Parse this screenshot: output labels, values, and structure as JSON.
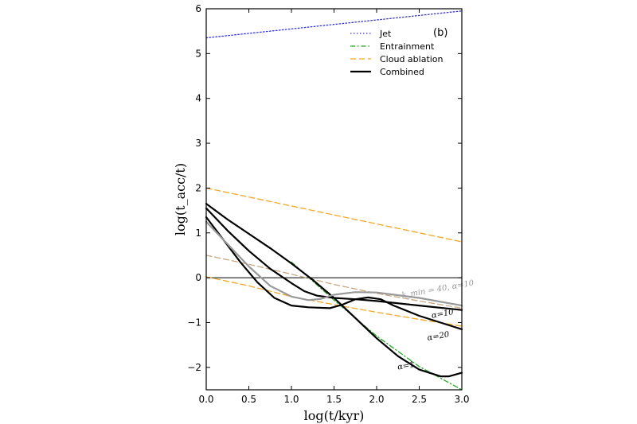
{
  "chart_data": {
    "type": "line",
    "xlabel": "log(t/kyr)",
    "ylabel": "log(t_acc/t)",
    "xlim": [
      0.0,
      3.0
    ],
    "ylim": [
      -2.5,
      6.0
    ],
    "xticks": [
      "0.0",
      "0.5",
      "1.0",
      "1.5",
      "2.0",
      "2.5",
      "3.0"
    ],
    "yticks": [
      "−2",
      "−1",
      "0",
      "1",
      "2",
      "3",
      "4",
      "5",
      "6"
    ],
    "panel_label": "(b)",
    "legend_position": "top-right",
    "legend": [
      {
        "label": "Jet",
        "style": "dotted",
        "color": "#3333dd"
      },
      {
        "label": "Entrainment",
        "style": "dashdot",
        "color": "#22aa22"
      },
      {
        "label": "Cloud ablation",
        "style": "dashed",
        "color": "#f5a623"
      },
      {
        "label": "Combined",
        "style": "solid",
        "color": "#000000"
      }
    ],
    "series": [
      {
        "name": "Jet",
        "style": "dotted",
        "color": "#3333dd",
        "x": [
          0.0,
          3.0
        ],
        "y": [
          5.35,
          5.95
        ]
      },
      {
        "name": "Entrainment",
        "style": "dashdot",
        "color": "#22aa22",
        "x": [
          1.0,
          1.5,
          2.0,
          2.5,
          3.0
        ],
        "y": [
          0.35,
          -0.5,
          -1.3,
          -1.98,
          -2.5
        ]
      },
      {
        "name": "Cloud ablation",
        "style": "dashed",
        "color": "#f5a623",
        "x": [
          0.0,
          3.0
        ],
        "y": [
          2.0,
          0.8
        ]
      },
      {
        "style": "dashed",
        "color": "#f5a623",
        "x": [
          0.0,
          0.5,
          1.0,
          1.5,
          2.0,
          2.5,
          3.0
        ],
        "y": [
          0.02,
          -0.18,
          -0.42,
          -0.6,
          -0.77,
          -0.93,
          -1.08
        ]
      },
      {
        "style": "dashed",
        "color": "#c8a680",
        "x": [
          0.0,
          0.5,
          1.0,
          1.5,
          2.0,
          2.5,
          3.0
        ],
        "y": [
          0.5,
          0.3,
          0.08,
          -0.15,
          -0.35,
          -0.52,
          -0.68
        ]
      },
      {
        "name": "α=1",
        "style": "solid",
        "color": "#000000",
        "x": [
          0.0,
          0.25,
          0.5,
          0.75,
          1.0,
          1.25,
          1.5,
          1.75,
          2.0,
          2.25,
          2.5,
          2.75,
          2.85,
          3.0
        ],
        "y": [
          1.65,
          1.3,
          0.98,
          0.66,
          0.32,
          -0.05,
          -0.45,
          -0.9,
          -1.35,
          -1.75,
          -2.05,
          -2.2,
          -2.2,
          -2.12
        ]
      },
      {
        "name": "α=10",
        "style": "solid",
        "color": "#000000",
        "x": [
          0.0,
          0.25,
          0.5,
          0.75,
          1.0,
          1.15,
          1.3,
          1.5,
          1.75,
          2.0,
          2.5,
          3.0
        ],
        "y": [
          1.55,
          1.05,
          0.6,
          0.2,
          -0.12,
          -0.3,
          -0.4,
          -0.45,
          -0.48,
          -0.52,
          -0.62,
          -0.72
        ]
      },
      {
        "name": "α=20",
        "style": "solid",
        "color": "#000000",
        "x": [
          0.0,
          0.2,
          0.4,
          0.6,
          0.8,
          1.0,
          1.2,
          1.45,
          1.6,
          1.75,
          1.9,
          2.05,
          2.2,
          2.5,
          2.75,
          3.0
        ],
        "y": [
          1.35,
          0.85,
          0.35,
          -0.1,
          -0.45,
          -0.62,
          -0.66,
          -0.68,
          -0.6,
          -0.48,
          -0.44,
          -0.48,
          -0.62,
          -0.85,
          -1.0,
          -1.15
        ]
      },
      {
        "name": "k_min=40, α=10",
        "style": "solid",
        "color": "#999999",
        "x": [
          0.0,
          0.25,
          0.5,
          0.75,
          1.0,
          1.2,
          1.35,
          1.5,
          1.75,
          2.0,
          2.5,
          3.0
        ],
        "y": [
          1.25,
          0.75,
          0.25,
          -0.18,
          -0.42,
          -0.5,
          -0.47,
          -0.38,
          -0.32,
          -0.33,
          -0.45,
          -0.62
        ]
      }
    ],
    "curve_labels": [
      {
        "text": "k_min = 40, α=10",
        "color": "#999999",
        "x": 2.3,
        "y": -0.45
      },
      {
        "text": "α=10",
        "color": "#000000",
        "x": 2.65,
        "y": -0.9
      },
      {
        "text": "α=20",
        "color": "#000000",
        "x": 2.6,
        "y": -1.4
      },
      {
        "text": "α=1",
        "color": "#000000",
        "x": 2.25,
        "y": -2.05
      }
    ]
  }
}
